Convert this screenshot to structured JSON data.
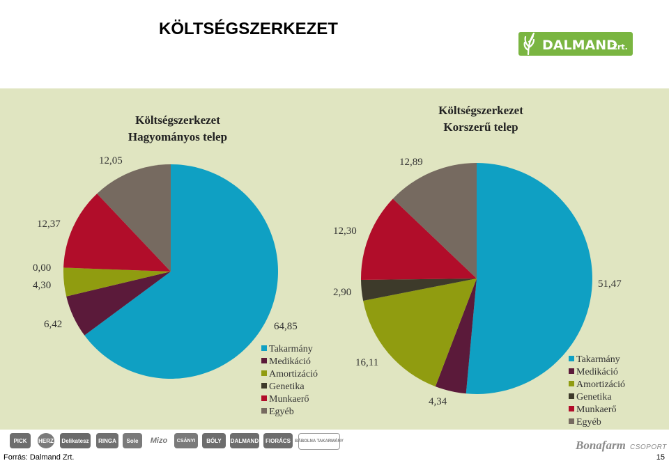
{
  "slide": {
    "title": "KÖLTSÉGSZERKEZET",
    "source": "Forrás: Dalmand Zrt.",
    "page_number": "15"
  },
  "logo": {
    "text": "DALMAND",
    "suffix": "Zrt.",
    "color": "#7ab541"
  },
  "footer": {
    "brands": [
      "PICK",
      "HERZ",
      "Delikatesz",
      "RINGA",
      "Sole",
      "Mizo",
      "CSÁNYI",
      "BÓLY",
      "DALMAND",
      "FIORÁCS",
      "BÁBOLNA TAKARMÁNY"
    ],
    "group_logo": "Bonafarm",
    "group_suffix": "CSOPORT"
  },
  "colors": {
    "Takarmány": "#0fa0c3",
    "Medikáció": "#5b1a3a",
    "Amortizáció": "#909c10",
    "Genetika": "#3d3a2a",
    "Munkaerő": "#b10d2a",
    "Egyéb": "#766a60",
    "panel": "#e0e5c1"
  },
  "chart_data": [
    {
      "type": "pie",
      "title": [
        "Költségszerkezet",
        "Hagyományos telep"
      ],
      "legend": [
        "Takarmány",
        "Medikáció",
        "Amortizáció",
        "Genetika",
        "Munkaerő",
        "Egyéb"
      ],
      "legend_position": "bottom-right",
      "slices": [
        {
          "name": "Takarmány",
          "value": 64.85,
          "label": "64,85"
        },
        {
          "name": "Medikáció",
          "value": 6.42,
          "label": "6,42"
        },
        {
          "name": "Amortizáció",
          "value": 4.3,
          "label": "4,30"
        },
        {
          "name": "Genetika",
          "value": 0.0,
          "label": "0,00"
        },
        {
          "name": "Munkaerő",
          "value": 12.37,
          "label": "12,37"
        },
        {
          "name": "Egyéb",
          "value": 12.05,
          "label": "12,05"
        }
      ]
    },
    {
      "type": "pie",
      "title": [
        "Költségszerkezet",
        "Korszerű telep"
      ],
      "legend": [
        "Takarmány",
        "Medikáció",
        "Amortizáció",
        "Genetika",
        "Munkaerő",
        "Egyéb"
      ],
      "legend_position": "bottom-right",
      "slices": [
        {
          "name": "Takarmány",
          "value": 51.47,
          "label": "51,47"
        },
        {
          "name": "Medikáció",
          "value": 4.34,
          "label": "4,34"
        },
        {
          "name": "Amortizáció",
          "value": 16.11,
          "label": "16,11"
        },
        {
          "name": "Genetika",
          "value": 2.9,
          "label": "2,90"
        },
        {
          "name": "Munkaerő",
          "value": 12.3,
          "label": "12,30"
        },
        {
          "name": "Egyéb",
          "value": 12.89,
          "label": "12,89"
        }
      ]
    }
  ]
}
